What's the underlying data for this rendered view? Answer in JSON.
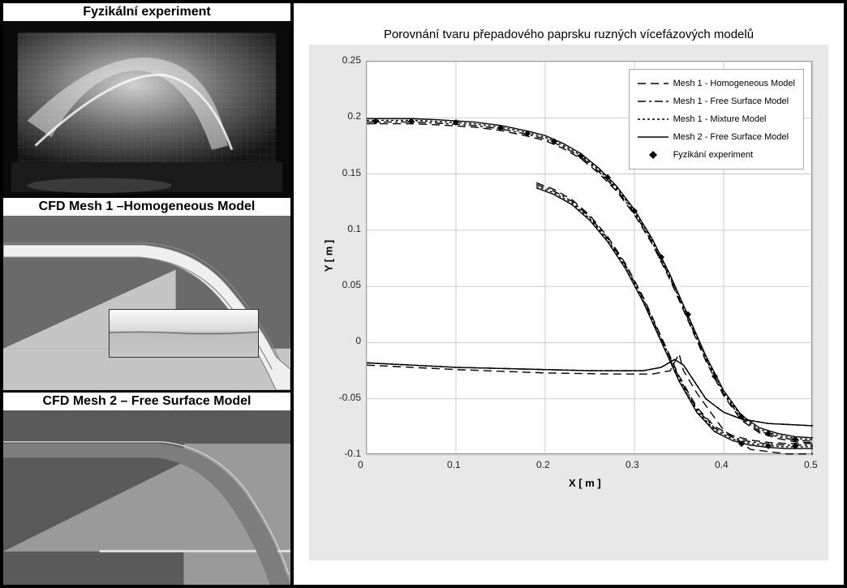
{
  "panels": {
    "exp": {
      "title": "Fyzikální experiment"
    },
    "cfd1": {
      "title": "CFD Mesh 1 –Homogeneous Model"
    },
    "cfd2": {
      "title": "CFD Mesh 2 – Free Surface Model"
    }
  },
  "chart": {
    "title": "Porovnání tvaru přepadového paprsku ruzných vícefázových modelů",
    "xlabel": "X [ m ]",
    "ylabel": "Y [ m ]",
    "xlim": [
      0,
      0.5
    ],
    "ylim": [
      -0.1,
      0.25
    ],
    "xticks": [
      0,
      0.1,
      0.2,
      0.3,
      0.4,
      0.5
    ],
    "yticks": [
      -0.1,
      -0.05,
      0,
      0.05,
      0.1,
      0.15,
      0.2,
      0.25
    ],
    "background_color": "#e8e8e8",
    "plot_bg": "#ffffff",
    "grid_color": "#bfbfbf",
    "line_color": "#000000",
    "legend": [
      {
        "label": "Mesh 1 - Homogeneous Model",
        "dash": "10,6"
      },
      {
        "label": "Mesh 1 - Free Surface Model",
        "dash": "10,4,3,4"
      },
      {
        "label": "Mesh 1 - Mixture Model",
        "dash": "3,3"
      },
      {
        "label": "Mesh 2 - Free Surface Model",
        "dash": ""
      },
      {
        "label": "Fyzikání experiment",
        "marker": "diamond"
      }
    ],
    "upper_curve": [
      [
        0,
        0.197
      ],
      [
        0.02,
        0.197
      ],
      [
        0.05,
        0.197
      ],
      [
        0.08,
        0.196
      ],
      [
        0.12,
        0.194
      ],
      [
        0.15,
        0.191
      ],
      [
        0.18,
        0.186
      ],
      [
        0.2,
        0.182
      ],
      [
        0.22,
        0.175
      ],
      [
        0.24,
        0.166
      ],
      [
        0.26,
        0.153
      ],
      [
        0.28,
        0.137
      ],
      [
        0.3,
        0.116
      ],
      [
        0.32,
        0.09
      ],
      [
        0.34,
        0.058
      ],
      [
        0.36,
        0.022
      ],
      [
        0.38,
        -0.014
      ],
      [
        0.4,
        -0.045
      ],
      [
        0.42,
        -0.067
      ],
      [
        0.44,
        -0.078
      ],
      [
        0.46,
        -0.083
      ],
      [
        0.48,
        -0.086
      ],
      [
        0.5,
        -0.087
      ]
    ],
    "lower_curve": [
      [
        0.19,
        0.14
      ],
      [
        0.21,
        0.134
      ],
      [
        0.23,
        0.125
      ],
      [
        0.25,
        0.111
      ],
      [
        0.27,
        0.092
      ],
      [
        0.29,
        0.068
      ],
      [
        0.31,
        0.038
      ],
      [
        0.33,
        0.003
      ],
      [
        0.35,
        -0.032
      ],
      [
        0.37,
        -0.06
      ],
      [
        0.39,
        -0.077
      ],
      [
        0.41,
        -0.085
      ],
      [
        0.43,
        -0.089
      ],
      [
        0.45,
        -0.091
      ],
      [
        0.47,
        -0.092
      ],
      [
        0.5,
        -0.092
      ]
    ],
    "bottom_curve": [
      [
        0.0,
        -0.018
      ],
      [
        0.05,
        -0.02
      ],
      [
        0.1,
        -0.022
      ],
      [
        0.15,
        -0.023
      ],
      [
        0.2,
        -0.024
      ],
      [
        0.25,
        -0.025
      ],
      [
        0.28,
        -0.025
      ],
      [
        0.31,
        -0.025
      ],
      [
        0.33,
        -0.022
      ],
      [
        0.345,
        -0.015
      ],
      [
        0.355,
        -0.02
      ],
      [
        0.365,
        -0.032
      ],
      [
        0.38,
        -0.05
      ],
      [
        0.4,
        -0.062
      ],
      [
        0.42,
        -0.068
      ],
      [
        0.45,
        -0.072
      ],
      [
        0.5,
        -0.074
      ]
    ],
    "bottom_curve_hom": [
      [
        0.0,
        -0.02
      ],
      [
        0.1,
        -0.024
      ],
      [
        0.2,
        -0.027
      ],
      [
        0.28,
        -0.028
      ],
      [
        0.32,
        -0.028
      ],
      [
        0.34,
        -0.025
      ],
      [
        0.35,
        -0.01
      ],
      [
        0.355,
        -0.025
      ],
      [
        0.37,
        -0.045
      ],
      [
        0.4,
        -0.078
      ],
      [
        0.43,
        -0.095
      ],
      [
        0.47,
        -0.099
      ],
      [
        0.5,
        -0.099
      ]
    ],
    "exp_points_upper": [
      [
        0.01,
        0.197
      ],
      [
        0.05,
        0.197
      ],
      [
        0.1,
        0.196
      ],
      [
        0.15,
        0.191
      ],
      [
        0.18,
        0.186
      ],
      [
        0.21,
        0.179
      ],
      [
        0.24,
        0.166
      ],
      [
        0.27,
        0.147
      ],
      [
        0.3,
        0.117
      ],
      [
        0.33,
        0.076
      ],
      [
        0.36,
        0.025
      ],
      [
        0.39,
        -0.03
      ],
      [
        0.42,
        -0.066
      ],
      [
        0.45,
        -0.081
      ],
      [
        0.48,
        -0.086
      ]
    ],
    "exp_points_lower": [
      [
        0.42,
        -0.09
      ],
      [
        0.45,
        -0.092
      ],
      [
        0.48,
        -0.092
      ]
    ]
  },
  "spillway": {
    "c1_bg": "#6a6a6a",
    "c1_water": "#c2c2c2",
    "c1_jet": "#f0f0f0",
    "c2_bg": "#5a5a5a",
    "c2_water": "#5a5a5a",
    "c2_surface": "#a8a8a8",
    "c2_jet": "#7d7d7d",
    "exp_bg1": "#202020",
    "exp_bg2": "#909090"
  }
}
